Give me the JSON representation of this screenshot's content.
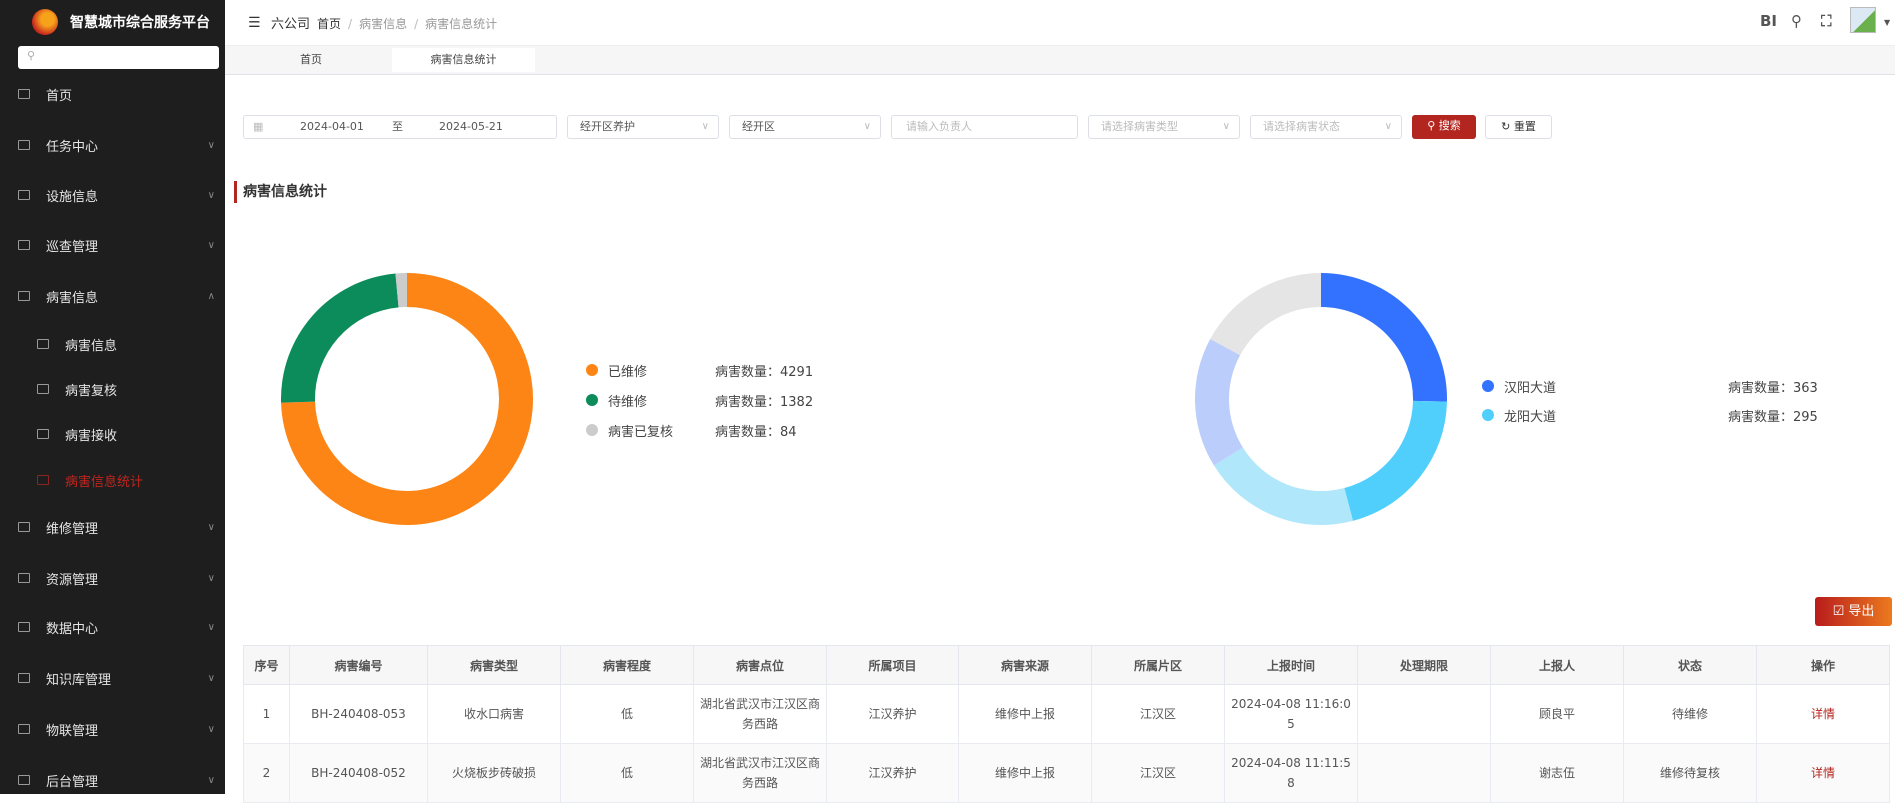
{
  "app": {
    "title": "智慧城市综合服务平台",
    "company": "六公司"
  },
  "sidebar": {
    "search_placeholder": "",
    "items": [
      {
        "label": "首页",
        "icon": "dashboard-icon"
      },
      {
        "label": "任务中心",
        "expandable": true
      },
      {
        "label": "设施信息",
        "expandable": true
      },
      {
        "label": "巡查管理",
        "expandable": true
      },
      {
        "label": "病害信息",
        "expanded": true,
        "children": [
          {
            "label": "病害信息"
          },
          {
            "label": "病害复核"
          },
          {
            "label": "病害接收"
          },
          {
            "label": "病害信息统计",
            "active": true
          }
        ]
      },
      {
        "label": "维修管理",
        "expandable": true
      },
      {
        "label": "资源管理",
        "expandable": true
      },
      {
        "label": "数据中心",
        "expandable": true
      },
      {
        "label": "知识库管理",
        "expandable": true
      },
      {
        "label": "物联管理",
        "expandable": true
      },
      {
        "label": "后台管理",
        "expandable": true
      }
    ]
  },
  "header": {
    "breadcrumb": [
      "首页",
      "病害信息",
      "病害信息统计"
    ],
    "bi_label": "BI"
  },
  "tabs": [
    {
      "label": "首页"
    },
    {
      "label": "病害信息统计",
      "active": true
    }
  ],
  "filters": {
    "date_start": "2024-04-01",
    "date_sep": "至",
    "date_end": "2024-05-21",
    "project": "经开区养护",
    "district": "经开区",
    "person_placeholder": "请输入负责人",
    "type_placeholder": "请选择病害类型",
    "status_placeholder": "请选择病害状态",
    "search_label": "搜索",
    "reset_label": "重置"
  },
  "section_title": "病害信息统计",
  "count_label": "病害数量：",
  "colors": {
    "accent": "#b3251f"
  },
  "chart_data": [
    {
      "type": "pie",
      "donut": true,
      "series": [
        {
          "name": "已维修",
          "value": 4291,
          "color": "#fd8515"
        },
        {
          "name": "待维修",
          "value": 1382,
          "color": "#0b8c5a"
        },
        {
          "name": "病害已复核",
          "value": 84,
          "color": "#cccccc"
        }
      ]
    },
    {
      "type": "pie",
      "donut": true,
      "series": [
        {
          "name": "汉阳大道",
          "value": 363,
          "color": "#3372fe"
        },
        {
          "name": "龙阳大道",
          "value": 295,
          "color": "#50cffd"
        },
        {
          "value": 290,
          "color": "#b1e7fb"
        },
        {
          "value": 240,
          "color": "#bbcdfb"
        },
        {
          "value": 245,
          "color": "#e5e5e5"
        }
      ]
    }
  ],
  "export_label": "导出",
  "table": {
    "columns": [
      "序号",
      "病害编号",
      "病害类型",
      "病害程度",
      "病害点位",
      "所属项目",
      "病害来源",
      "所属片区",
      "上报时间",
      "处理期限",
      "上报人",
      "状态",
      "操作"
    ],
    "rows": [
      [
        "1",
        "BH-240408-053",
        "收水口病害",
        "低",
        "湖北省武汉市江汉区商务西路",
        "江汉养护",
        "维修中上报",
        "江汉区",
        "2024-04-08 11:16:05",
        "",
        "顾良平",
        "待维修",
        "详情"
      ],
      [
        "2",
        "BH-240408-052",
        "火烧板步砖破损",
        "低",
        "湖北省武汉市江汉区商务西路",
        "江汉养护",
        "维修中上报",
        "江汉区",
        "2024-04-08 11:11:58",
        "",
        "谢志伍",
        "维修待复核",
        "详情"
      ]
    ]
  }
}
